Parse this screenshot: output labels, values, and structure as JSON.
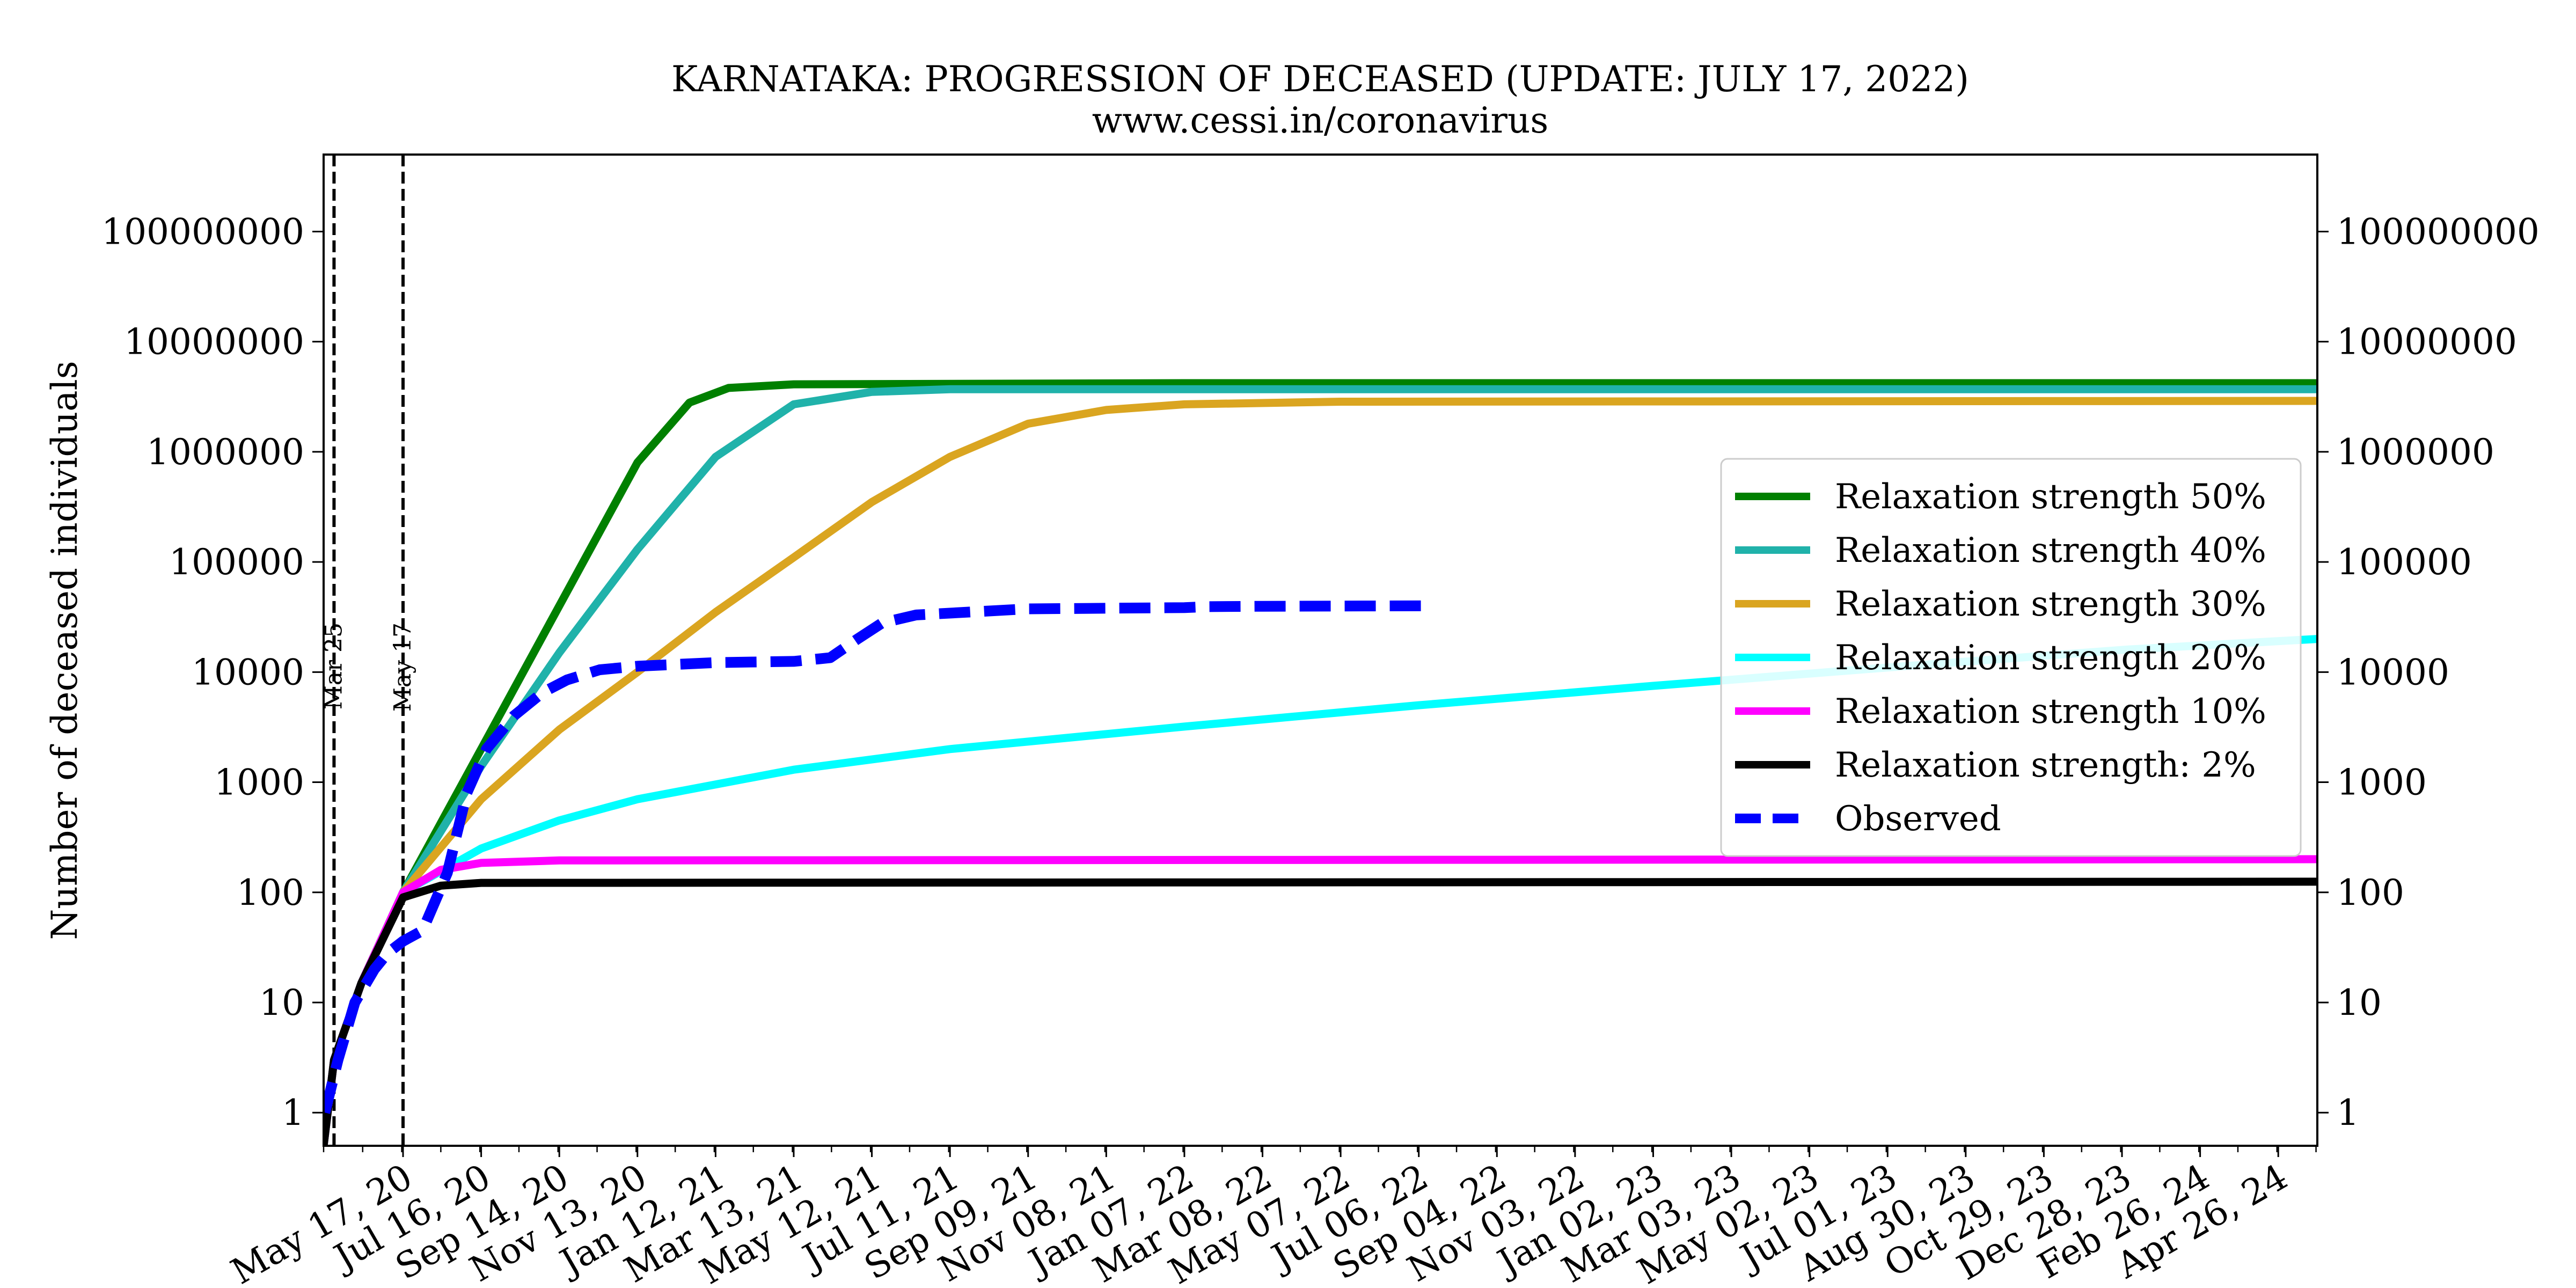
{
  "chart_data": {
    "type": "line",
    "title": "KARNATAKA: PROGRESSION OF DECEASED (UPDATE: JULY 17, 2022)",
    "subtitle": "www.cessi.in/coronavirus",
    "xlabel": "",
    "ylabel": "Number of deceased individuals",
    "yscale": "log",
    "ylim": [
      0.5,
      500000000
    ],
    "xlim": [
      "2020-03-17",
      "2024-05-26"
    ],
    "grid": false,
    "legend_position": "right",
    "x_tick_labels": [
      "May 17, 20",
      "Jul 16, 20",
      "Sep 14, 20",
      "Nov 13, 20",
      "Jan 12, 21",
      "Mar 13, 21",
      "May 12, 21",
      "Jul 11, 21",
      "Sep 09, 21",
      "Nov 08, 21",
      "Jan 07, 22",
      "Mar 08, 22",
      "May 07, 22",
      "Jul 06, 22",
      "Sep 04, 22",
      "Nov 03, 22",
      "Jan 02, 23",
      "Mar 03, 23",
      "May 02, 23",
      "Jul 01, 23",
      "Aug 30, 23",
      "Oct 29, 23",
      "Dec 28, 23",
      "Feb 26, 24",
      "Apr 26, 24"
    ],
    "x_tick_dates": [
      "2020-05-17",
      "2020-07-16",
      "2020-09-14",
      "2020-11-13",
      "2021-01-12",
      "2021-03-13",
      "2021-05-12",
      "2021-07-11",
      "2021-09-09",
      "2021-11-08",
      "2022-01-07",
      "2022-03-08",
      "2022-05-07",
      "2022-07-06",
      "2022-09-04",
      "2022-11-03",
      "2023-01-02",
      "2023-03-03",
      "2023-05-02",
      "2023-07-01",
      "2023-08-30",
      "2023-10-29",
      "2023-12-28",
      "2024-02-26",
      "2024-04-26"
    ],
    "y_ticks": [
      1,
      10,
      100,
      1000,
      10000,
      100000,
      1000000,
      10000000,
      100000000
    ],
    "y_tick_labels": [
      "1",
      "10",
      "100",
      "1000",
      "10000",
      "100000",
      "1000000",
      "10000000",
      "100000000"
    ],
    "vlines": [
      {
        "label": "Mar 25",
        "date": "2020-03-25"
      },
      {
        "label": "May 17",
        "date": "2020-05-17"
      }
    ],
    "series": [
      {
        "name": "Relaxation strength 50%",
        "color": "#008000",
        "style": "solid",
        "points": [
          [
            "2020-03-17",
            0.5
          ],
          [
            "2020-03-25",
            3
          ],
          [
            "2020-04-15",
            15
          ],
          [
            "2020-05-17",
            100
          ],
          [
            "2020-07-16",
            2000
          ],
          [
            "2020-09-14",
            40000
          ],
          [
            "2020-11-13",
            800000
          ],
          [
            "2020-12-23",
            2800000
          ],
          [
            "2021-01-22",
            3800000
          ],
          [
            "2021-03-13",
            4100000
          ],
          [
            "2022-01-07",
            4200000
          ],
          [
            "2024-05-26",
            4200000
          ]
        ]
      },
      {
        "name": "Relaxation strength 40%",
        "color": "#20b2aa",
        "style": "solid",
        "points": [
          [
            "2020-03-17",
            0.5
          ],
          [
            "2020-03-25",
            3
          ],
          [
            "2020-04-15",
            15
          ],
          [
            "2020-05-17",
            100
          ],
          [
            "2020-07-16",
            1400
          ],
          [
            "2020-09-14",
            15000
          ],
          [
            "2020-11-13",
            130000
          ],
          [
            "2021-01-12",
            900000
          ],
          [
            "2021-03-13",
            2700000
          ],
          [
            "2021-05-12",
            3500000
          ],
          [
            "2021-07-11",
            3700000
          ],
          [
            "2024-05-26",
            3700000
          ]
        ]
      },
      {
        "name": "Relaxation strength 30%",
        "color": "#daa520",
        "style": "solid",
        "points": [
          [
            "2020-03-17",
            0.5
          ],
          [
            "2020-03-25",
            3
          ],
          [
            "2020-04-15",
            15
          ],
          [
            "2020-05-17",
            100
          ],
          [
            "2020-07-16",
            700
          ],
          [
            "2020-09-14",
            3000
          ],
          [
            "2020-11-13",
            10000
          ],
          [
            "2021-01-12",
            35000
          ],
          [
            "2021-03-13",
            110000
          ],
          [
            "2021-05-12",
            350000
          ],
          [
            "2021-07-11",
            900000
          ],
          [
            "2021-09-09",
            1800000
          ],
          [
            "2021-11-08",
            2400000
          ],
          [
            "2022-01-07",
            2700000
          ],
          [
            "2022-05-07",
            2850000
          ],
          [
            "2024-05-26",
            2900000
          ]
        ]
      },
      {
        "name": "Relaxation strength 20%",
        "color": "#00ffff",
        "style": "solid",
        "points": [
          [
            "2020-03-17",
            0.5
          ],
          [
            "2020-03-25",
            3
          ],
          [
            "2020-04-15",
            15
          ],
          [
            "2020-05-17",
            100
          ],
          [
            "2020-07-16",
            250
          ],
          [
            "2020-09-14",
            450
          ],
          [
            "2020-11-13",
            700
          ],
          [
            "2021-03-13",
            1300
          ],
          [
            "2021-07-11",
            2000
          ],
          [
            "2022-01-07",
            3200
          ],
          [
            "2022-07-06",
            5000
          ],
          [
            "2023-01-02",
            7500
          ],
          [
            "2023-07-01",
            11000
          ],
          [
            "2024-01-01",
            16000
          ],
          [
            "2024-05-26",
            20000
          ]
        ]
      },
      {
        "name": "Relaxation strength 10%",
        "color": "#ff00ff",
        "style": "solid",
        "points": [
          [
            "2020-03-17",
            0.5
          ],
          [
            "2020-03-25",
            3
          ],
          [
            "2020-04-15",
            15
          ],
          [
            "2020-05-17",
            100
          ],
          [
            "2020-06-15",
            160
          ],
          [
            "2020-07-16",
            185
          ],
          [
            "2020-09-14",
            195
          ],
          [
            "2024-05-26",
            200
          ]
        ]
      },
      {
        "name": "Relaxation strength: 2%",
        "color": "#000000",
        "style": "solid",
        "points": [
          [
            "2020-03-17",
            0.5
          ],
          [
            "2020-03-25",
            3
          ],
          [
            "2020-04-15",
            15
          ],
          [
            "2020-05-17",
            90
          ],
          [
            "2020-06-15",
            115
          ],
          [
            "2020-07-16",
            122
          ],
          [
            "2024-05-26",
            125
          ]
        ]
      },
      {
        "name": "Observed",
        "color": "#0000ff",
        "style": "dashed",
        "points": [
          [
            "2020-03-18",
            1
          ],
          [
            "2020-03-28",
            3
          ],
          [
            "2020-04-10",
            10
          ],
          [
            "2020-04-25",
            20
          ],
          [
            "2020-05-05",
            28
          ],
          [
            "2020-05-17",
            36
          ],
          [
            "2020-06-01",
            45
          ],
          [
            "2020-06-20",
            150
          ],
          [
            "2020-07-05",
            800
          ],
          [
            "2020-07-20",
            2000
          ],
          [
            "2020-08-10",
            4000
          ],
          [
            "2020-09-01",
            6500
          ],
          [
            "2020-09-20",
            8500
          ],
          [
            "2020-10-15",
            10500
          ],
          [
            "2020-11-13",
            11300
          ],
          [
            "2021-01-12",
            12200
          ],
          [
            "2021-03-13",
            12500
          ],
          [
            "2021-04-10",
            13500
          ],
          [
            "2021-05-01",
            20000
          ],
          [
            "2021-05-20",
            28000
          ],
          [
            "2021-06-15",
            33000
          ],
          [
            "2021-09-09",
            37500
          ],
          [
            "2022-01-07",
            38500
          ],
          [
            "2022-01-25",
            39300
          ],
          [
            "2022-03-08",
            39600
          ],
          [
            "2022-07-17",
            40000
          ]
        ]
      }
    ]
  }
}
